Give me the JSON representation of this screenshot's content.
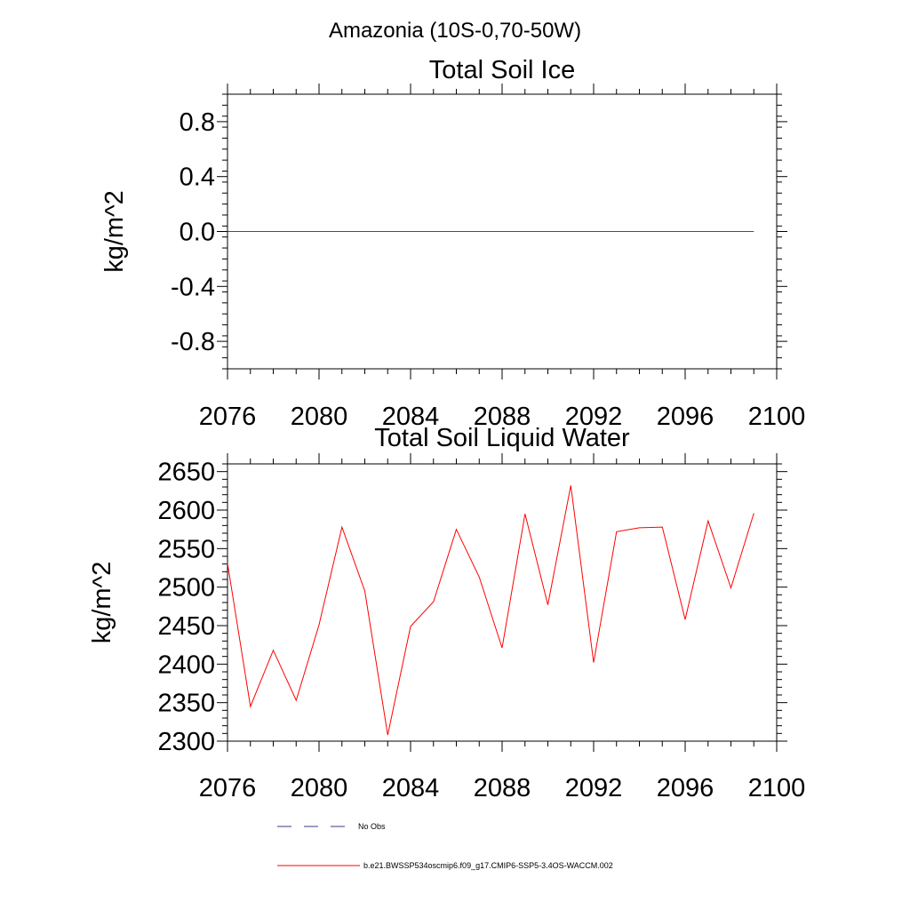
{
  "page_title": "Amazonia (10S-0,70-50W)",
  "chart_data": [
    {
      "type": "line",
      "title": "Total Soil Ice",
      "xlabel": "",
      "ylabel": "kg/m^2",
      "xlim": [
        2076,
        2100
      ],
      "ylim": [
        -1.0,
        1.0
      ],
      "x_ticks": [
        2076,
        2080,
        2084,
        2088,
        2092,
        2096,
        2100
      ],
      "x_tick_labels": [
        "2076",
        "2080",
        "2084",
        "2088",
        "2092",
        "2096",
        "2100"
      ],
      "y_ticks": [
        -0.8,
        -0.4,
        0.0,
        0.4,
        0.8
      ],
      "y_tick_labels": [
        "-0.8",
        "-0.4",
        "0.0",
        "0.4",
        "0.8"
      ],
      "grid": false,
      "series": [
        {
          "name": "b.e21.BWSSP534oscmip6.f09_g17.CMIP6-SSP5-3.4OS-WACCM.002",
          "color": "#ff0000",
          "x": [
            2076,
            2077,
            2078,
            2079,
            2080,
            2081,
            2082,
            2083,
            2084,
            2085,
            2086,
            2087,
            2088,
            2089,
            2090,
            2091,
            2092,
            2093,
            2094,
            2095,
            2096,
            2097,
            2098,
            2099
          ],
          "values": [
            0,
            0,
            0,
            0,
            0,
            0,
            0,
            0,
            0,
            0,
            0,
            0,
            0,
            0,
            0,
            0,
            0,
            0,
            0,
            0,
            0,
            0,
            0,
            0
          ]
        }
      ]
    },
    {
      "type": "line",
      "title": "Total Soil Liquid Water",
      "xlabel": "",
      "ylabel": "kg/m^2",
      "xlim": [
        2076,
        2100
      ],
      "ylim": [
        2300,
        2660
      ],
      "x_ticks": [
        2076,
        2080,
        2084,
        2088,
        2092,
        2096,
        2100
      ],
      "x_tick_labels": [
        "2076",
        "2080",
        "2084",
        "2088",
        "2092",
        "2096",
        "2100"
      ],
      "y_ticks": [
        2300,
        2350,
        2400,
        2450,
        2500,
        2550,
        2600,
        2650
      ],
      "y_tick_labels": [
        "2300",
        "2350",
        "2400",
        "2450",
        "2500",
        "2550",
        "2600",
        "2650"
      ],
      "grid": false,
      "series": [
        {
          "name": "b.e21.BWSSP534oscmip6.f09_g17.CMIP6-SSP5-3.4OS-WACCM.002",
          "color": "#ff0000",
          "x": [
            2076,
            2077,
            2078,
            2079,
            2080,
            2081,
            2082,
            2083,
            2084,
            2085,
            2086,
            2087,
            2088,
            2089,
            2090,
            2091,
            2092,
            2093,
            2094,
            2095,
            2096,
            2097,
            2098,
            2099
          ],
          "values": [
            2531,
            2345,
            2418,
            2353,
            2451,
            2578,
            2495,
            2308,
            2449,
            2481,
            2575,
            2513,
            2421,
            2595,
            2477,
            2632,
            2402,
            2572,
            2577,
            2578,
            2458,
            2586,
            2499,
            2596
          ]
        }
      ]
    }
  ],
  "legend": {
    "placement": "bottom",
    "entries": [
      {
        "label": "No Obs",
        "color": "#3a3a8c",
        "style": "dashed"
      },
      {
        "label": "b.e21.BWSSP534oscmip6.f09_g17.CMIP6-SSP5-3.4OS-WACCM.002",
        "color": "#ff0000",
        "style": "solid"
      }
    ]
  }
}
